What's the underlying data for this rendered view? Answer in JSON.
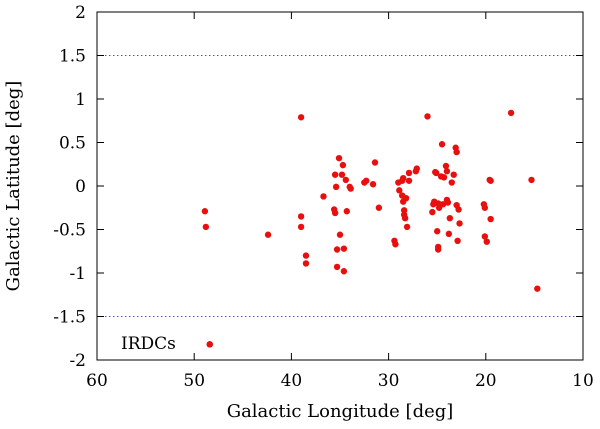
{
  "chart_data": {
    "type": "scatter",
    "xlabel": "Galactic Longitude [deg]",
    "ylabel": "Galactic Latitude [deg]",
    "xlim": [
      60,
      10
    ],
    "ylim": [
      -2,
      2
    ],
    "x_reversed": true,
    "xticks": [
      "60",
      "50",
      "40",
      "30",
      "20",
      "10"
    ],
    "yticks": [
      "-2",
      "-1.5",
      "-1",
      "-0.5",
      "0",
      "0.5",
      "1",
      "1.5",
      "2"
    ],
    "grid": false,
    "reference_lines": [
      1.5,
      -1.5
    ],
    "legend": {
      "entries": [
        "IRDCs"
      ],
      "placement": "bottom-left"
    },
    "marker_color": "#e8100f",
    "reference_line_color": "#5555cc",
    "series": [
      {
        "name": "IRDCs",
        "points": [
          [
            48.9,
            -0.29
          ],
          [
            48.8,
            -0.47
          ],
          [
            48.4,
            -1.82
          ],
          [
            42.4,
            -0.56
          ],
          [
            39.0,
            0.79
          ],
          [
            39.0,
            -0.35
          ],
          [
            39.0,
            -0.47
          ],
          [
            38.5,
            -0.8
          ],
          [
            38.5,
            -0.89
          ],
          [
            36.7,
            -0.12
          ],
          [
            35.6,
            -0.27
          ],
          [
            35.5,
            -0.31
          ],
          [
            35.5,
            0.13
          ],
          [
            35.4,
            -0.01
          ],
          [
            35.3,
            -0.73
          ],
          [
            35.3,
            -0.93
          ],
          [
            35.1,
            0.32
          ],
          [
            35.0,
            -0.56
          ],
          [
            34.8,
            0.13
          ],
          [
            34.7,
            0.24
          ],
          [
            34.6,
            -0.72
          ],
          [
            34.6,
            -0.98
          ],
          [
            34.4,
            0.07
          ],
          [
            34.3,
            -0.29
          ],
          [
            34.0,
            -0.01
          ],
          [
            33.9,
            -0.03
          ],
          [
            32.5,
            0.04
          ],
          [
            32.3,
            0.06
          ],
          [
            31.6,
            0.02
          ],
          [
            31.4,
            0.27
          ],
          [
            31.0,
            -0.25
          ],
          [
            29.4,
            -0.63
          ],
          [
            29.3,
            -0.67
          ],
          [
            29.0,
            0.04
          ],
          [
            28.9,
            -0.05
          ],
          [
            28.6,
            0.06
          ],
          [
            28.6,
            -0.11
          ],
          [
            28.5,
            0.09
          ],
          [
            28.5,
            -0.18
          ],
          [
            28.4,
            -0.28
          ],
          [
            28.4,
            -0.33
          ],
          [
            28.3,
            -0.37
          ],
          [
            28.2,
            -0.14
          ],
          [
            28.1,
            -0.47
          ],
          [
            27.9,
            0.06
          ],
          [
            27.9,
            0.15
          ],
          [
            27.2,
            0.17
          ],
          [
            27.1,
            0.2
          ],
          [
            26.0,
            0.8
          ],
          [
            25.5,
            -0.3
          ],
          [
            25.4,
            -0.21
          ],
          [
            25.3,
            -0.18
          ],
          [
            25.2,
            0.16
          ],
          [
            25.1,
            0.15
          ],
          [
            25.0,
            -0.52
          ],
          [
            24.9,
            -0.7
          ],
          [
            24.9,
            -0.73
          ],
          [
            24.9,
            -0.2
          ],
          [
            24.8,
            -0.25
          ],
          [
            24.6,
            0.11
          ],
          [
            24.5,
            0.48
          ],
          [
            24.4,
            -0.21
          ],
          [
            24.3,
            0.1
          ],
          [
            24.1,
            0.23
          ],
          [
            24.0,
            0.17
          ],
          [
            24.0,
            -0.16
          ],
          [
            23.9,
            -0.19
          ],
          [
            23.8,
            -0.55
          ],
          [
            23.7,
            -0.37
          ],
          [
            23.5,
            0.04
          ],
          [
            23.3,
            0.13
          ],
          [
            23.1,
            0.44
          ],
          [
            23.0,
            0.39
          ],
          [
            23.0,
            -0.22
          ],
          [
            22.9,
            -0.63
          ],
          [
            22.8,
            -0.27
          ],
          [
            22.7,
            -0.43
          ],
          [
            20.2,
            -0.21
          ],
          [
            20.1,
            -0.25
          ],
          [
            20.1,
            -0.58
          ],
          [
            19.9,
            -0.64
          ],
          [
            19.6,
            0.07
          ],
          [
            19.5,
            0.06
          ],
          [
            19.5,
            -0.38
          ],
          [
            17.4,
            0.84
          ],
          [
            15.3,
            0.07
          ],
          [
            14.7,
            -1.18
          ]
        ]
      }
    ]
  }
}
